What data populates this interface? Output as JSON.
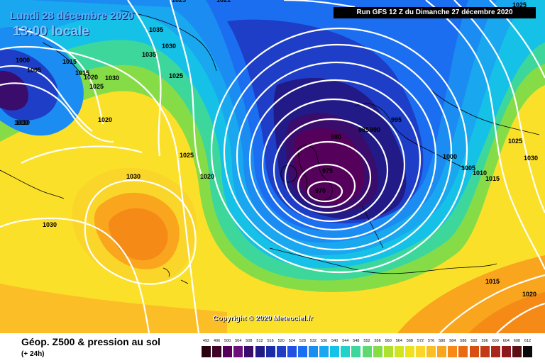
{
  "header": {
    "date": "Lundi 28 décembre 2020",
    "time": "13:00 locale",
    "run": "Run GFS 12 Z du Dimanche 27 décembre 2020"
  },
  "copyright": "Copyright © 2020 Meteociel.fr",
  "footer": {
    "title": "Géop. Z500 & pression au sol",
    "subtitle": "(+ 24h)"
  },
  "legend": {
    "labels": [
      "492",
      "496",
      "500",
      "504",
      "508",
      "512",
      "516",
      "520",
      "524",
      "528",
      "532",
      "536",
      "540",
      "544",
      "548",
      "552",
      "556",
      "560",
      "564",
      "568",
      "572",
      "576",
      "580",
      "584",
      "588",
      "592",
      "596",
      "600",
      "604",
      "608",
      "612"
    ],
    "colors": [
      "#2a0011",
      "#3e0028",
      "#55005b",
      "#6a127a",
      "#3a0d6d",
      "#221a86",
      "#1d2ca6",
      "#1e3ec7",
      "#2050e6",
      "#1c6ef0",
      "#1b8cf2",
      "#19a7f0",
      "#16c1e8",
      "#22d1c8",
      "#3dd79c",
      "#5ed970",
      "#86dc47",
      "#aee12f",
      "#d0e422",
      "#eee31b",
      "#fbd62a",
      "#fbbe26",
      "#f9a51e",
      "#f58a17",
      "#ea6a12",
      "#d84f14",
      "#c23a18",
      "#a8281c",
      "#8a1a1f",
      "#5a0f14",
      "#0a0a0a"
    ]
  },
  "isobars": [
    {
      "label": "1035",
      "pos": "top-left"
    },
    {
      "label": "1030",
      "pos": "top-left"
    },
    {
      "label": "1035",
      "pos": "top-left"
    },
    {
      "label": "1025",
      "pos": "top-left"
    },
    {
      "label": "1000",
      "pos": "left"
    },
    {
      "label": "1005",
      "pos": "left"
    },
    {
      "label": "1010",
      "pos": "left"
    },
    {
      "label": "1015",
      "pos": "left"
    },
    {
      "label": "1015",
      "pos": "left"
    },
    {
      "label": "1020",
      "pos": "left"
    },
    {
      "label": "1025",
      "pos": "left"
    },
    {
      "label": "1030",
      "pos": "left"
    },
    {
      "label": "1020",
      "pos": "left"
    },
    {
      "label": "1010",
      "pos": "left"
    },
    {
      "label": "1030",
      "pos": "left-center"
    },
    {
      "label": "1030",
      "pos": "bottom-left"
    },
    {
      "label": "1025",
      "pos": "center-left"
    },
    {
      "label": "1020",
      "pos": "center-left"
    },
    {
      "label": "980",
      "pos": "center"
    },
    {
      "label": "975",
      "pos": "center"
    },
    {
      "label": "970",
      "pos": "center"
    },
    {
      "label": "985",
      "pos": "center-right"
    },
    {
      "label": "990",
      "pos": "center-right"
    },
    {
      "label": "995",
      "pos": "right"
    },
    {
      "label": "1000",
      "pos": "right"
    },
    {
      "label": "1005",
      "pos": "right"
    },
    {
      "label": "1010",
      "pos": "right"
    },
    {
      "label": "1015",
      "pos": "right"
    },
    {
      "label": "1025",
      "pos": "right"
    },
    {
      "label": "1030",
      "pos": "right"
    },
    {
      "label": "1015",
      "pos": "bottom-right"
    },
    {
      "label": "1020",
      "pos": "bottom-right"
    },
    {
      "label": "1025",
      "pos": "top"
    },
    {
      "label": "1021",
      "pos": "top"
    },
    {
      "label": "1025",
      "pos": "top-right"
    }
  ]
}
